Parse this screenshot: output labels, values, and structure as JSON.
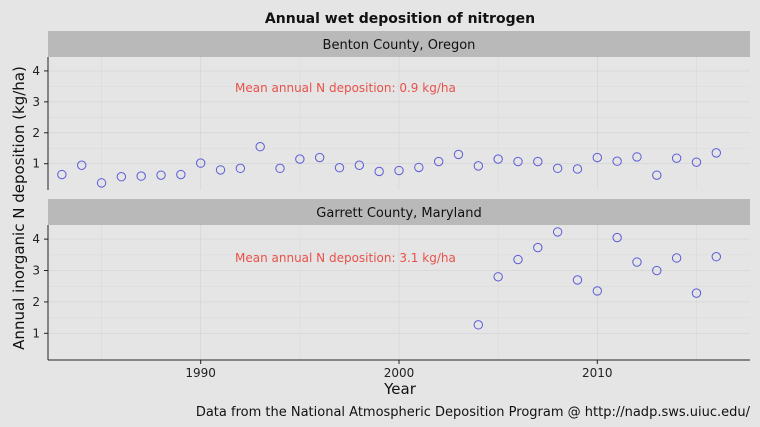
{
  "chart_data": {
    "type": "scatter",
    "title": "Annual wet deposition of nitrogen",
    "xlabel": "Year",
    "ylabel": "Annual inorganic N deposition (kg/ha)",
    "caption": "Data from the National Atmospheric Deposition Program @ http://nadp.sws.uiuc.edu/",
    "x_ticks": [
      1990,
      2000,
      2010
    ],
    "y_ticks": [
      1,
      2,
      3,
      4
    ],
    "xlim": [
      1982.3,
      2017.7
    ],
    "ylim": [
      0.15,
      4.45
    ],
    "grid": true,
    "point_color": "#5b5bd9",
    "annotation_color": "#e8524a",
    "panels": [
      {
        "name": "Benton County, Oregon",
        "annotation": "Mean annual N deposition: 0.9 kg/ha",
        "x": [
          1983,
          1984,
          1985,
          1986,
          1987,
          1988,
          1989,
          1990,
          1991,
          1992,
          1993,
          1994,
          1995,
          1996,
          1997,
          1998,
          1999,
          2000,
          2001,
          2002,
          2003,
          2004,
          2005,
          2006,
          2007,
          2008,
          2009,
          2010,
          2011,
          2012,
          2013,
          2014,
          2015,
          2016
        ],
        "y": [
          0.65,
          0.95,
          0.38,
          0.58,
          0.6,
          0.63,
          0.65,
          1.02,
          0.8,
          0.85,
          1.55,
          0.85,
          1.15,
          1.2,
          0.87,
          0.95,
          0.75,
          0.78,
          0.88,
          1.07,
          1.3,
          0.93,
          1.15,
          1.07,
          1.07,
          0.85,
          0.83,
          1.2,
          1.08,
          1.22,
          0.63,
          1.18,
          1.05,
          1.35
        ]
      },
      {
        "name": "Garrett County, Maryland",
        "annotation": "Mean annual N deposition: 3.1 kg/ha",
        "x": [
          2004,
          2005,
          2006,
          2007,
          2008,
          2009,
          2010,
          2011,
          2012,
          2013,
          2014,
          2015,
          2016
        ],
        "y": [
          1.27,
          2.8,
          3.35,
          3.73,
          4.23,
          2.7,
          2.35,
          4.05,
          3.27,
          3.0,
          3.4,
          2.28,
          3.44
        ]
      }
    ]
  }
}
